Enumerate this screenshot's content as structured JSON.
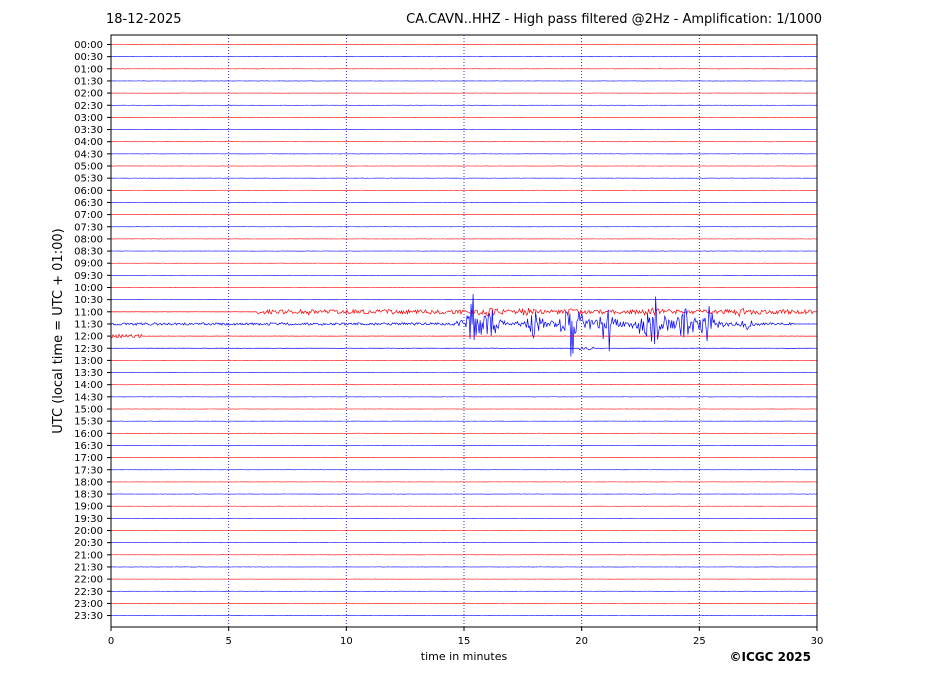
{
  "header": {
    "date": "18-12-2025",
    "title": "CA.CAVN..HHZ - High pass filtered @2Hz - Amplification: 1/1000"
  },
  "credit": "©ICGC 2025",
  "chart_data": {
    "type": "line",
    "title": "CA.CAVN..HHZ - High pass filtered @2Hz - Amplification: 1/1000",
    "xlabel": "time in minutes",
    "ylabel": "UTC (local time = UTC + 01:00)",
    "xlim": [
      0,
      30
    ],
    "x_ticks": [
      0,
      5,
      10,
      15,
      20,
      25,
      30
    ],
    "y_ticks": [
      "00:00",
      "00:30",
      "01:00",
      "01:30",
      "02:00",
      "02:30",
      "03:00",
      "03:30",
      "04:00",
      "04:30",
      "05:00",
      "05:30",
      "06:00",
      "06:30",
      "07:00",
      "07:30",
      "08:00",
      "08:30",
      "09:00",
      "09:30",
      "10:00",
      "10:30",
      "11:00",
      "11:30",
      "12:00",
      "12:30",
      "13:00",
      "13:30",
      "14:00",
      "14:30",
      "15:00",
      "15:30",
      "16:00",
      "16:30",
      "17:00",
      "17:30",
      "18:00",
      "18:30",
      "19:00",
      "19:30",
      "20:00",
      "20:30",
      "21:00",
      "21:30",
      "22:00",
      "22:30",
      "23:00",
      "23:30"
    ],
    "trace_colors": [
      "#ff0000",
      "#0000ff"
    ],
    "grid": "vertical dotted at x ticks",
    "events": [
      {
        "trace": "11:00",
        "start": 6.2,
        "end": 29.8,
        "amplitude": 0.35,
        "bursts": [
          [
            8.2,
            0.6
          ],
          [
            16.0,
            0.9
          ],
          [
            17.5,
            0.8
          ],
          [
            19.5,
            0.6
          ],
          [
            23.0,
            1.0
          ],
          [
            26.8,
            0.9
          ]
        ]
      },
      {
        "trace": "11:30",
        "start": 0.0,
        "end": 29.0,
        "amplitude": 0.2,
        "bursts": [
          [
            15.4,
            6.0
          ],
          [
            16.1,
            5.0
          ],
          [
            18.0,
            4.0
          ],
          [
            19.6,
            10.0
          ],
          [
            21.1,
            7.0
          ],
          [
            22.8,
            7.0
          ],
          [
            23.2,
            6.5
          ],
          [
            24.4,
            6.0
          ],
          [
            25.4,
            5.5
          ],
          [
            27.0,
            1.2
          ]
        ]
      },
      {
        "trace": "12:00",
        "start": 0.0,
        "end": 1.3,
        "amplitude": 0.3,
        "bursts": []
      },
      {
        "trace": "12:30",
        "start": 19.9,
        "end": 20.5,
        "amplitude": 0.3,
        "bursts": []
      }
    ]
  }
}
